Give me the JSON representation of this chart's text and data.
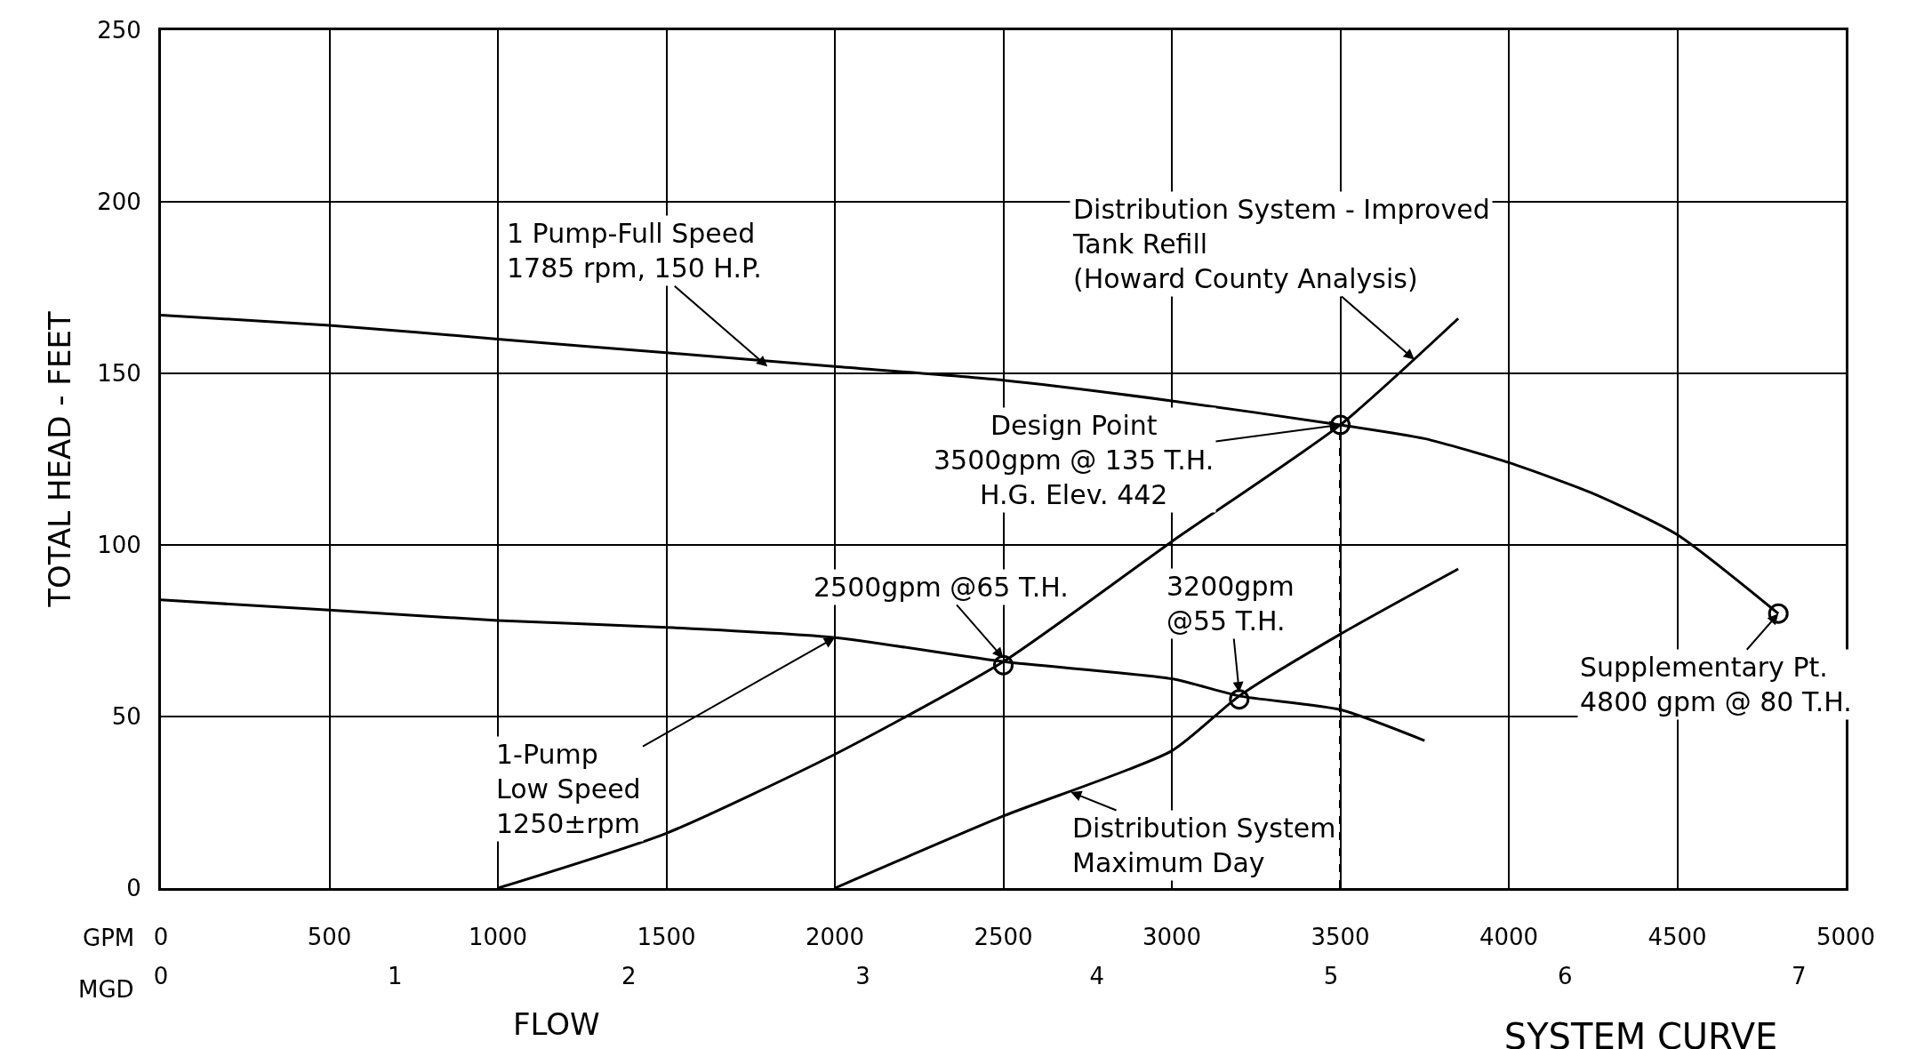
{
  "chart_data": {
    "type": "line",
    "title": "SYSTEM CURVE",
    "xlabel": "GPM",
    "x2label": "MGD",
    "ylabel": "TOTAL HEAD - FEET",
    "xlim": [
      0,
      5000
    ],
    "xticks": [
      0,
      500,
      1000,
      1500,
      2000,
      2500,
      3000,
      3500,
      4000,
      4500,
      5000
    ],
    "x2lim": [
      0,
      7.2
    ],
    "x2ticks": [
      0,
      1,
      2,
      3,
      4,
      5,
      6,
      7
    ],
    "ylim": [
      0,
      250
    ],
    "yticks": [
      0,
      50,
      100,
      150,
      200,
      250
    ],
    "grid": true,
    "marker": "none",
    "line_style": "solid",
    "series": [
      {
        "color": "#000000",
        "x": [
          0,
          500,
          1000,
          1500,
          2000,
          2500,
          3000,
          3500,
          3750,
          4000,
          4250,
          4500,
          4800
        ],
        "values": [
          167,
          164,
          160,
          156,
          152,
          148,
          142,
          135,
          131,
          124,
          115,
          103,
          80
        ]
      },
      {
        "color": "#000000",
        "x": [
          0,
          500,
          1000,
          1500,
          2000,
          2500,
          3000,
          3200,
          3500,
          3750
        ],
        "values": [
          84,
          81,
          78,
          76,
          73,
          66,
          61,
          56,
          52,
          43
        ]
      },
      {
        "color": "#000000",
        "x": [
          1000,
          1500,
          2000,
          2500,
          3000,
          3500,
          3850
        ],
        "values": [
          0,
          16,
          39,
          66,
          101,
          135,
          166
        ]
      },
      {
        "color": "#000000",
        "x": [
          2000,
          2500,
          3000,
          3200,
          3500,
          3850
        ],
        "values": [
          0,
          21,
          40,
          56,
          74,
          93
        ]
      },
      {
        "color": "#000000",
        "x": [
          3500,
          3500
        ],
        "values": [
          0,
          135
        ],
        "line_style": "dashed"
      },
      {
        "type": "scatter",
        "color": "#000000",
        "marker": "circle",
        "x": [
          2500,
          3200,
          3500,
          4800
        ],
        "values": [
          65,
          55,
          135,
          80
        ]
      }
    ],
    "annotations": [
      {
        "text": "1 Pump-Full Speed\n1785 rpm, 150 H.P.",
        "x": 1800,
        "y": 152
      },
      {
        "text": "Distribution System - Improved\nTank Refill\n(Howard County Analysis)",
        "x": 3720,
        "y": 154
      },
      {
        "text": "Design Point\n3500gpm @ 135 T.H.\nH.G. Elev. 442",
        "x": 3500,
        "y": 135
      },
      {
        "text": "2500gpm @65 T.H.",
        "x": 2500,
        "y": 67
      },
      {
        "text": "3200gpm\n@55 T.H.",
        "x": 3200,
        "y": 57
      },
      {
        "text": "Supplementary Pt.\n4800 gpm @ 80 T.H.",
        "x": 4800,
        "y": 80
      },
      {
        "text": "1-Pump\nLow Speed\n1250±rpm",
        "x": 2000,
        "y": 73
      },
      {
        "text": "Distribution System\nMaximum Day",
        "x": 2700,
        "y": 28
      },
      "FLOW"
    ]
  }
}
